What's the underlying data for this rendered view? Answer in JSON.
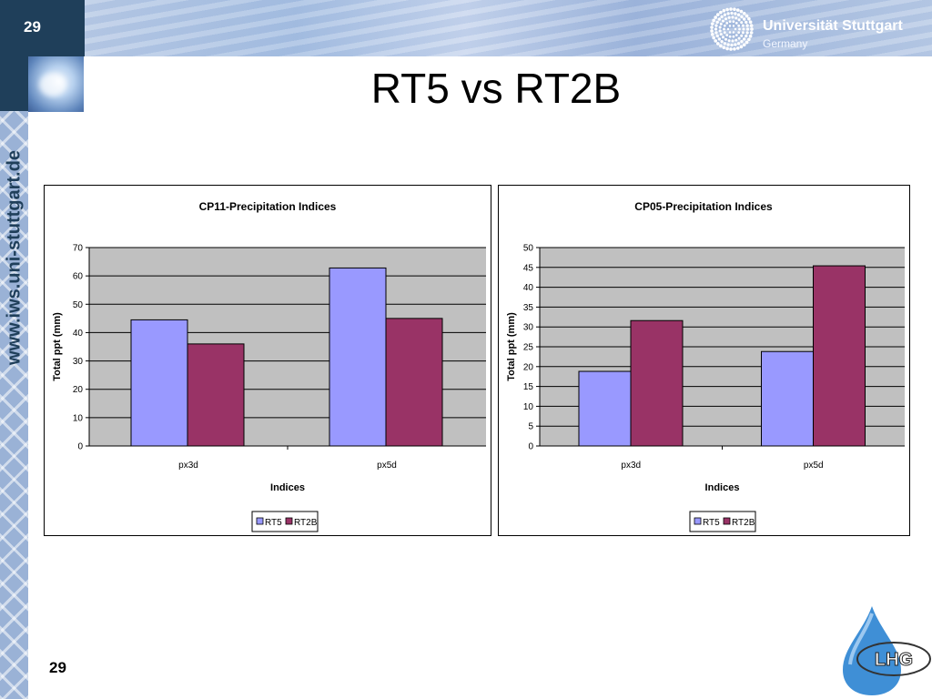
{
  "header": {
    "slide_number": "29",
    "university_name": "Universität Stuttgart",
    "university_country": "Germany",
    "sidebar_url": "www.iws.uni-stuttgart.de"
  },
  "slide": {
    "title": "RT5 vs RT2B",
    "page_number": "29",
    "logo_text": "LHG"
  },
  "colors": {
    "rt5": "#9999ff",
    "rt2b": "#993366",
    "plot_bg": "#c0c0c0",
    "header_dark": "#1f3f5a"
  },
  "chart_data": [
    {
      "type": "bar",
      "title": "CP11-Precipitation Indices",
      "xlabel": "Indices",
      "ylabel": "Total ppt (mm)",
      "categories": [
        "px3d",
        "px5d"
      ],
      "series": [
        {
          "name": "RT5",
          "values": [
            44.5,
            62.8
          ]
        },
        {
          "name": "RT2B",
          "values": [
            36.0,
            45.0
          ]
        }
      ],
      "ylim": [
        0,
        70
      ],
      "yticks": [
        0,
        10,
        20,
        30,
        40,
        50,
        60,
        70
      ],
      "grid": true,
      "legend": "bottom"
    },
    {
      "type": "bar",
      "title": "CP05-Precipitation Indices",
      "xlabel": "Indices",
      "ylabel": "Total ppt (mm)",
      "categories": [
        "px3d",
        "px5d"
      ],
      "series": [
        {
          "name": "RT5",
          "values": [
            18.8,
            23.8
          ]
        },
        {
          "name": "RT2B",
          "values": [
            31.6,
            45.4
          ]
        }
      ],
      "ylim": [
        0,
        50
      ],
      "yticks": [
        0,
        5,
        10,
        15,
        20,
        25,
        30,
        35,
        40,
        45,
        50
      ],
      "grid": true,
      "legend": "bottom"
    }
  ]
}
